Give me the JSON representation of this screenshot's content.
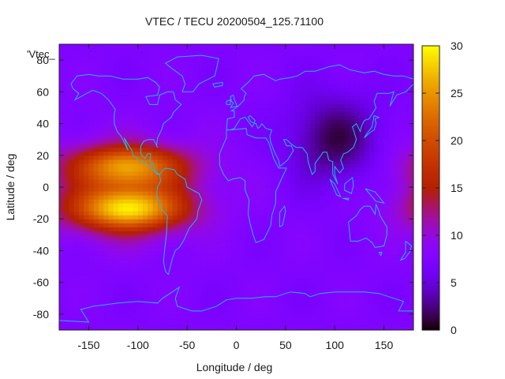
{
  "chart_data": {
    "type": "heatmap",
    "title": "VTEC / TECU 20200504_125.71100",
    "xlabel": "Longitude / deg",
    "ylabel": "Latitude / deg",
    "series_label": "'Vtec_",
    "xlim": [
      -180,
      180
    ],
    "ylim": [
      -90,
      90
    ],
    "x_ticks": [
      -150,
      -100,
      -50,
      0,
      50,
      100,
      150
    ],
    "y_ticks": [
      -80,
      -60,
      -40,
      -20,
      0,
      20,
      40,
      60,
      80
    ],
    "colorbar": {
      "range": [
        0,
        30
      ],
      "ticks": [
        0,
        5,
        10,
        15,
        20,
        25,
        30
      ],
      "colormap": "black-purple-red-orange-yellow"
    },
    "field": {
      "background_tecu": 7.5,
      "peak_lon": -110,
      "peak_lat": -5,
      "peak_tecu": 28,
      "crest_north_lat": 15,
      "crest_south_lat": -15,
      "night_minimum_lon": 100,
      "night_minimum_lat": 30,
      "night_minimum_tecu": 3
    },
    "grid": false,
    "overlay": "coastlines",
    "colors": {
      "coastline": "#22b8e8"
    }
  }
}
